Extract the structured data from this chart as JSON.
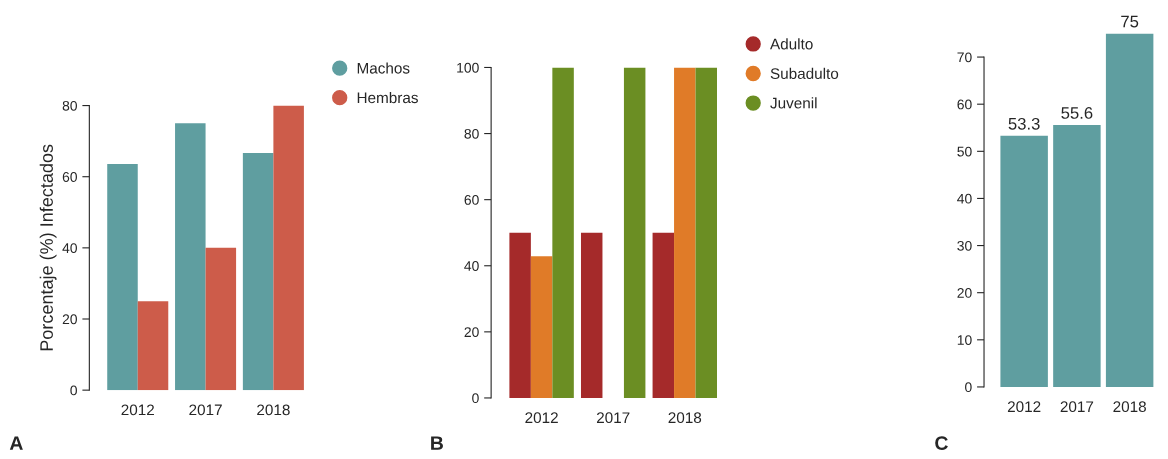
{
  "chart_data": [
    {
      "type": "bar",
      "categories": [
        "2012",
        "2017",
        "2018"
      ],
      "ylabel": "Porcentaje (%) Infectados",
      "ylim": [
        0,
        80
      ],
      "yticks": [
        0,
        20,
        40,
        60,
        80
      ],
      "legend": "top right",
      "marker": "circle",
      "grid": false,
      "annotations": [
        "A"
      ],
      "series": [
        {
          "name": "Machos",
          "color": "#5f9ea0",
          "values": [
            63.6,
            75,
            66.7
          ]
        },
        {
          "name": "Hembras",
          "color": "#cd5c4a",
          "values": [
            25,
            40,
            80
          ]
        }
      ]
    },
    {
      "type": "bar",
      "categories": [
        "2012",
        "2017",
        "2018"
      ],
      "ylim": [
        0,
        100
      ],
      "yticks": [
        0,
        20,
        40,
        60,
        80,
        100
      ],
      "legend": "top right",
      "marker": "circle",
      "grid": false,
      "annotations": [
        "B"
      ],
      "series": [
        {
          "name": "Adulto",
          "color": "#a52a2a",
          "values": [
            50,
            50,
            50
          ]
        },
        {
          "name": "Subadulto",
          "color": "#e07b28",
          "values": [
            42.9,
            null,
            100
          ]
        },
        {
          "name": "Juvenil",
          "color": "#6b8e23",
          "values": [
            100,
            100,
            100
          ]
        }
      ]
    },
    {
      "type": "bar",
      "categories": [
        "2012",
        "2017",
        "2018"
      ],
      "ylim": [
        0,
        75
      ],
      "yticks": [
        0,
        10,
        20,
        30,
        40,
        50,
        60,
        70
      ],
      "legend": false,
      "grid": false,
      "annotations": [
        "C"
      ],
      "series": [
        {
          "color": "#5f9ea0",
          "values": [
            53.3,
            55.6,
            75
          ],
          "value_labels": [
            "53.3",
            "55.6",
            "75"
          ]
        }
      ]
    }
  ]
}
